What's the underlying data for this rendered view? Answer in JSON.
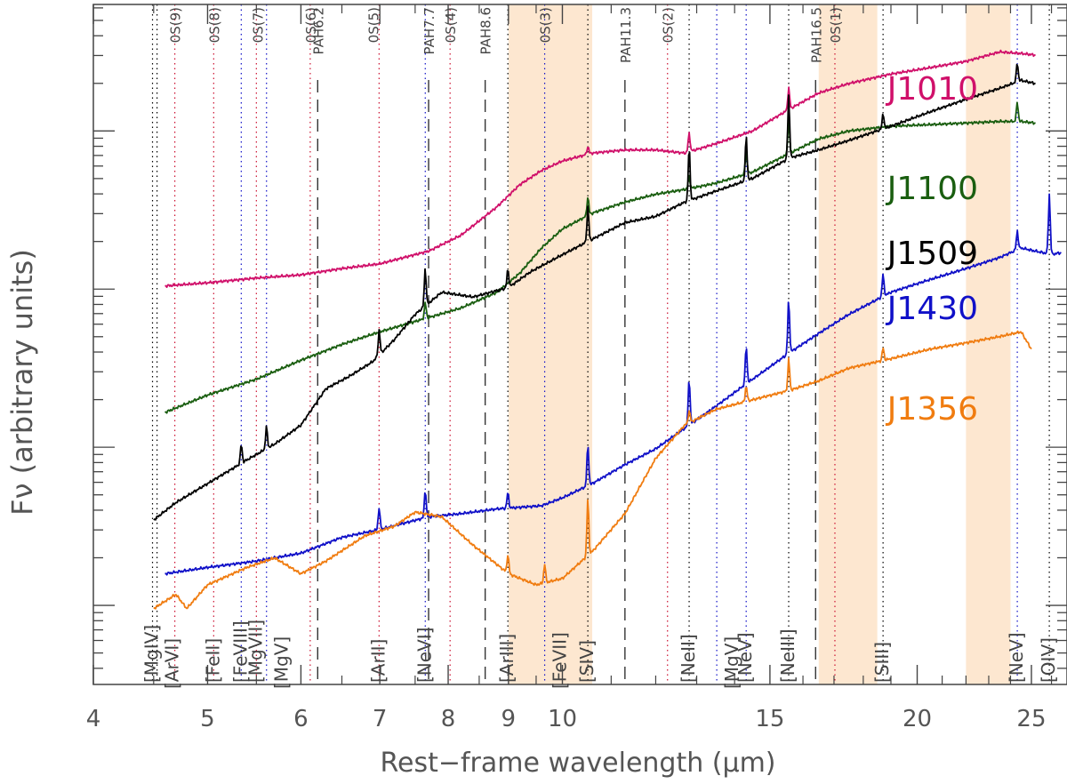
{
  "chart_data": {
    "type": "line",
    "title": "",
    "xlabel": "Rest−frame wavelength (μm)",
    "ylabel": "Fν (arbitrary units)",
    "xscale": "log",
    "xlim": [
      4.0,
      26.8
    ],
    "yscale": "log",
    "ylim_log10": [
      -0.5,
      3.8
    ],
    "x_ticks": [
      4,
      5,
      6,
      7,
      8,
      9,
      10,
      15,
      20,
      25
    ],
    "x_tick_labels": [
      "4",
      "5",
      "6",
      "7",
      "8",
      "9",
      "10",
      "15",
      "20",
      "25"
    ],
    "shaded_bands": [
      [
        9.0,
        10.6
      ],
      [
        16.5,
        18.5
      ],
      [
        22.0,
        24.0
      ]
    ],
    "series": [
      {
        "name": "J1010",
        "color": "#d0106a",
        "x": [
          4.6,
          5.0,
          5.5,
          6.0,
          6.5,
          7.0,
          7.7,
          8.2,
          8.8,
          9.2,
          9.6,
          10.0,
          10.6,
          11.3,
          12.0,
          12.7,
          13.5,
          14.5,
          15.6,
          16.5,
          17.5,
          19.0,
          20.5,
          22.0,
          23.5,
          24.5,
          25.2
        ],
        "y": [
          2.02,
          2.04,
          2.07,
          2.09,
          2.13,
          2.16,
          2.24,
          2.34,
          2.52,
          2.66,
          2.75,
          2.81,
          2.86,
          2.88,
          2.88,
          2.86,
          2.92,
          3.0,
          3.14,
          3.24,
          3.3,
          3.36,
          3.4,
          3.44,
          3.5,
          3.49,
          3.48
        ]
      },
      {
        "name": "J1100",
        "color": "#1a5e10",
        "x": [
          4.6,
          5.0,
          5.5,
          6.0,
          6.5,
          7.0,
          7.7,
          8.2,
          8.8,
          9.2,
          9.6,
          10.0,
          10.6,
          11.3,
          12.0,
          12.7,
          13.5,
          14.5,
          15.6,
          16.5,
          17.5,
          19.0,
          20.5,
          22.0,
          23.5,
          24.5,
          25.2
        ],
        "y": [
          1.22,
          1.33,
          1.43,
          1.55,
          1.65,
          1.73,
          1.82,
          1.88,
          1.98,
          2.1,
          2.26,
          2.38,
          2.48,
          2.55,
          2.6,
          2.63,
          2.67,
          2.74,
          2.86,
          2.95,
          3.0,
          3.03,
          3.04,
          3.05,
          3.06,
          3.06,
          3.05
        ]
      },
      {
        "name": "J1509",
        "color": "#000000",
        "x": [
          4.5,
          4.7,
          5.0,
          5.4,
          5.7,
          6.0,
          6.3,
          6.6,
          6.9,
          7.2,
          7.5,
          7.9,
          8.4,
          9.0,
          9.4,
          9.9,
          10.5,
          11.3,
          12.0,
          12.7,
          13.5,
          14.5,
          15.6,
          16.5,
          17.5,
          19.0,
          20.5,
          22.0,
          23.5,
          24.5,
          25.2
        ],
        "y": [
          0.54,
          0.65,
          0.77,
          0.92,
          1.02,
          1.14,
          1.37,
          1.45,
          1.54,
          1.68,
          1.84,
          1.98,
          1.95,
          2.01,
          2.11,
          2.2,
          2.3,
          2.42,
          2.46,
          2.55,
          2.62,
          2.7,
          2.83,
          2.88,
          2.94,
          3.03,
          3.12,
          3.2,
          3.27,
          3.32,
          3.3
        ]
      },
      {
        "name": "J1430",
        "color": "#1010c8",
        "x": [
          4.6,
          5.0,
          5.5,
          6.0,
          6.5,
          7.0,
          7.7,
          8.2,
          8.8,
          9.2,
          9.6,
          10.0,
          10.6,
          11.3,
          12.0,
          12.7,
          13.5,
          14.5,
          15.6,
          16.5,
          17.5,
          19.0,
          20.5,
          22.0,
          23.5,
          24.5,
          25.2,
          26.0,
          26.5
        ],
        "y": [
          0.2,
          0.24,
          0.28,
          0.33,
          0.43,
          0.48,
          0.56,
          0.58,
          0.61,
          0.62,
          0.63,
          0.68,
          0.77,
          0.89,
          0.99,
          1.12,
          1.26,
          1.43,
          1.6,
          1.72,
          1.84,
          1.98,
          2.06,
          2.13,
          2.2,
          2.26,
          2.24,
          2.22,
          2.23
        ]
      },
      {
        "name": "J1356",
        "color": "#f07c10",
        "x": [
          4.5,
          4.7,
          4.8,
          5.0,
          5.4,
          5.7,
          6.0,
          6.3,
          6.8,
          7.2,
          7.5,
          7.9,
          8.4,
          9.0,
          9.5,
          10.0,
          10.6,
          11.3,
          12.0,
          12.7,
          13.5,
          14.5,
          15.6,
          16.5,
          17.5,
          19.0,
          20.5,
          22.0,
          23.5,
          24.5,
          25.0
        ],
        "y": [
          -0.02,
          0.07,
          -0.02,
          0.13,
          0.24,
          0.3,
          0.2,
          0.28,
          0.44,
          0.5,
          0.59,
          0.56,
          0.38,
          0.2,
          0.13,
          0.17,
          0.34,
          0.58,
          0.93,
          1.14,
          1.24,
          1.3,
          1.36,
          1.42,
          1.5,
          1.56,
          1.62,
          1.66,
          1.7,
          1.73,
          1.62
        ]
      }
    ],
    "series_labels": [
      "J1010",
      "J1100",
      "J1509",
      "J1430",
      "J1356"
    ],
    "emission_lines": [
      {
        "x": 4.49,
        "color": "#000000",
        "label": "[MgIV]",
        "row": 0
      },
      {
        "x": 4.53,
        "color": "#000000",
        "label": "[ArVI]",
        "row": 1
      },
      {
        "x": 4.69,
        "color": "#cc1030",
        "label": "",
        "row": 0
      },
      {
        "x": 5.06,
        "color": "#cc1030",
        "label": "[FeII]",
        "row": 0
      },
      {
        "x": 5.34,
        "color": "#1010c8",
        "label": "[FeVIII]",
        "row": 0
      },
      {
        "x": 5.5,
        "color": "#cc1030",
        "label": "[MgVII]",
        "row": 0
      },
      {
        "x": 5.61,
        "color": "#1010c8",
        "label": "[MgV]",
        "row": 1
      },
      {
        "x": 6.11,
        "color": "#cc1030",
        "label": "",
        "row": 0
      },
      {
        "x": 6.99,
        "color": "#cc1030",
        "label": "[ArII]",
        "row": 0
      },
      {
        "x": 7.65,
        "color": "#1010c8",
        "label": "[NeVI]",
        "row": 0
      },
      {
        "x": 8.03,
        "color": "#cc1030",
        "label": "",
        "row": 0
      },
      {
        "x": 8.99,
        "color": "#000000",
        "label": "[ArIII]",
        "row": 0
      },
      {
        "x": 9.66,
        "color": "#1010c8",
        "label": "[FeVII]",
        "row": 1
      },
      {
        "x": 10.51,
        "color": "#000000",
        "label": "[SIV]",
        "row": 0
      },
      {
        "x": 12.28,
        "color": "#cc1030",
        "label": "",
        "row": 0
      },
      {
        "x": 12.81,
        "color": "#000000",
        "label": "[NeII]",
        "row": 0
      },
      {
        "x": 13.52,
        "color": "#1010c8",
        "label": "[MgV]",
        "row": 1
      },
      {
        "x": 14.32,
        "color": "#1010c8",
        "label": "[NeV]",
        "row": 0
      },
      {
        "x": 15.56,
        "color": "#000000",
        "label": "[NeIII]",
        "row": 0
      },
      {
        "x": 17.03,
        "color": "#cc1030",
        "label": "",
        "row": 0
      },
      {
        "x": 18.71,
        "color": "#000000",
        "label": "[SIII]",
        "row": 0
      },
      {
        "x": 24.32,
        "color": "#1010c8",
        "label": "[NeV]",
        "row": 0
      },
      {
        "x": 25.89,
        "color": "#000000",
        "label": "[OIV]",
        "row": 0
      }
    ],
    "top_labels": [
      {
        "x": 4.69,
        "label": "0S(9)"
      },
      {
        "x": 5.06,
        "label": "0S(8)"
      },
      {
        "x": 5.51,
        "label": "0S(7)"
      },
      {
        "x": 6.11,
        "label": "0S(6)"
      },
      {
        "x": 6.2,
        "label": "PAH6.2"
      },
      {
        "x": 6.91,
        "label": "0S(5)"
      },
      {
        "x": 7.7,
        "label": "PAH7.7"
      },
      {
        "x": 8.03,
        "label": "0S(4)"
      },
      {
        "x": 8.6,
        "label": "PAH8.6"
      },
      {
        "x": 9.66,
        "label": "0S(3)"
      },
      {
        "x": 11.3,
        "label": "PAH11.3"
      },
      {
        "x": 12.28,
        "label": "0S(2)"
      },
      {
        "x": 16.4,
        "label": "PAH16.5"
      },
      {
        "x": 17.03,
        "label": "0S(1)"
      }
    ],
    "pah_lines": [
      6.2,
      7.7,
      8.6,
      11.3,
      16.4
    ]
  }
}
